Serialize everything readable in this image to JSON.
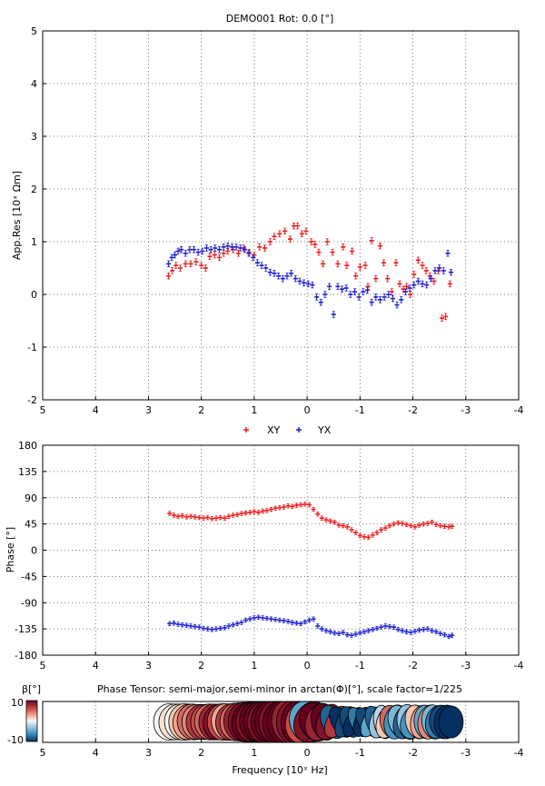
{
  "figure": {
    "title": "DEMO001 Rot: 0.0 [°]",
    "xlabel": "Frequency [10ˣ Hz]",
    "colors": {
      "xy": "#e8191b",
      "yx": "#1c1ccf",
      "grid": "#555555"
    }
  },
  "chart_data": [
    {
      "type": "scatter",
      "panel": "resistivity",
      "ylabel": "App.Res [10ˣ Ωm]",
      "xlim": [
        5,
        -4
      ],
      "ylim": [
        -2,
        5
      ],
      "xticks": [
        "5",
        "4",
        "3",
        "2",
        "1",
        "0",
        "-1",
        "-2",
        "-3",
        "-4"
      ],
      "yticks": [
        "-2",
        "-1",
        "0",
        "1",
        "2",
        "3",
        "4",
        "5"
      ],
      "grid": true,
      "legend_position": "below",
      "series": [
        {
          "name": "XY",
          "color": "#e8191b",
          "x": [
            2.62,
            2.55,
            2.48,
            2.4,
            2.3,
            2.2,
            2.1,
            2.0,
            1.92,
            1.84,
            1.75,
            1.66,
            1.58,
            1.5,
            1.4,
            1.3,
            1.2,
            1.1,
            1.0,
            0.9,
            0.8,
            0.7,
            0.62,
            0.52,
            0.42,
            0.32,
            0.25,
            0.18,
            0.1,
            0.02,
            -0.08,
            -0.15,
            -0.22,
            -0.3,
            -0.38,
            -0.48,
            -0.58,
            -0.68,
            -0.75,
            -0.85,
            -0.92,
            -1.0,
            -1.1,
            -1.15,
            -1.22,
            -1.3,
            -1.38,
            -1.45,
            -1.52,
            -1.6,
            -1.68,
            -1.75,
            -1.82,
            -1.88,
            -1.95,
            -2.02,
            -2.1,
            -2.18,
            -2.25,
            -2.32,
            -2.4,
            -2.48,
            -2.55,
            -2.62,
            -2.7
          ],
          "y": [
            0.35,
            0.45,
            0.55,
            0.5,
            0.58,
            0.58,
            0.62,
            0.55,
            0.5,
            0.72,
            0.75,
            0.7,
            0.78,
            0.82,
            0.85,
            0.78,
            0.88,
            0.8,
            0.75,
            0.9,
            0.88,
            1.0,
            1.1,
            1.15,
            1.2,
            1.05,
            1.3,
            1.3,
            1.15,
            1.2,
            1.0,
            0.95,
            0.8,
            0.58,
            1.0,
            0.8,
            0.58,
            0.9,
            0.55,
            0.82,
            0.35,
            0.52,
            0.55,
            0.15,
            1.02,
            0.3,
            0.92,
            0.6,
            0.3,
            0.05,
            0.6,
            0.2,
            0.1,
            0.15,
            0.0,
            0.38,
            0.65,
            0.55,
            0.45,
            0.35,
            0.25,
            0.45,
            -0.45,
            -0.42,
            0.2
          ],
          "yerr": 0.04
        },
        {
          "name": "YX",
          "color": "#1c1ccf",
          "x": [
            2.62,
            2.56,
            2.5,
            2.44,
            2.38,
            2.3,
            2.22,
            2.14,
            2.06,
            1.98,
            1.9,
            1.82,
            1.74,
            1.66,
            1.58,
            1.5,
            1.42,
            1.34,
            1.26,
            1.18,
            1.1,
            1.02,
            0.94,
            0.86,
            0.78,
            0.7,
            0.62,
            0.54,
            0.46,
            0.38,
            0.3,
            0.22,
            0.14,
            0.06,
            -0.02,
            -0.1,
            -0.18,
            -0.26,
            -0.34,
            -0.42,
            -0.5,
            -0.58,
            -0.66,
            -0.74,
            -0.82,
            -0.9,
            -0.98,
            -1.06,
            -1.14,
            -1.22,
            -1.3,
            -1.38,
            -1.46,
            -1.54,
            -1.62,
            -1.7,
            -1.78,
            -1.86,
            -1.94,
            -2.02,
            -2.1,
            -2.18,
            -2.26,
            -2.34,
            -2.42,
            -2.5,
            -2.58,
            -2.66,
            -2.72
          ],
          "y": [
            0.58,
            0.7,
            0.75,
            0.82,
            0.85,
            0.78,
            0.85,
            0.85,
            0.8,
            0.82,
            0.88,
            0.85,
            0.88,
            0.85,
            0.9,
            0.92,
            0.9,
            0.9,
            0.88,
            0.85,
            0.78,
            0.7,
            0.6,
            0.55,
            0.5,
            0.42,
            0.4,
            0.35,
            0.3,
            0.35,
            0.4,
            0.3,
            0.25,
            0.22,
            0.2,
            0.18,
            -0.05,
            -0.15,
            0.0,
            0.15,
            -0.38,
            0.15,
            0.1,
            0.12,
            0.0,
            0.05,
            -0.05,
            0.05,
            0.08,
            -0.15,
            -0.05,
            -0.1,
            -0.05,
            0.0,
            -0.08,
            -0.2,
            -0.1,
            0.05,
            0.12,
            0.18,
            0.25,
            0.2,
            0.18,
            0.3,
            0.45,
            0.5,
            0.45,
            0.78,
            0.42
          ],
          "yerr": 0.04
        }
      ]
    },
    {
      "type": "scatter",
      "panel": "phase",
      "ylabel": "Phase [°]",
      "xlim": [
        5,
        -4
      ],
      "ylim": [
        -180,
        180
      ],
      "xticks": [
        "5",
        "4",
        "3",
        "2",
        "1",
        "0",
        "-1",
        "-2",
        "-3",
        "-4"
      ],
      "yticks": [
        "-180",
        "-135",
        "-90",
        "-45",
        "0",
        "45",
        "90",
        "135",
        "180"
      ],
      "grid": true,
      "series": [
        {
          "name": "XY",
          "color": "#e8191b",
          "x": [
            2.6,
            2.52,
            2.44,
            2.36,
            2.28,
            2.2,
            2.12,
            2.04,
            1.96,
            1.88,
            1.8,
            1.72,
            1.64,
            1.56,
            1.48,
            1.4,
            1.32,
            1.24,
            1.16,
            1.08,
            1.0,
            0.92,
            0.84,
            0.76,
            0.68,
            0.6,
            0.52,
            0.44,
            0.36,
            0.28,
            0.2,
            0.12,
            0.04,
            -0.04,
            -0.12,
            -0.2,
            -0.28,
            -0.36,
            -0.44,
            -0.52,
            -0.6,
            -0.68,
            -0.76,
            -0.84,
            -0.92,
            -1.0,
            -1.08,
            -1.16,
            -1.24,
            -1.32,
            -1.4,
            -1.48,
            -1.56,
            -1.64,
            -1.72,
            -1.8,
            -1.88,
            -1.96,
            -2.04,
            -2.12,
            -2.2,
            -2.28,
            -2.36,
            -2.44,
            -2.52,
            -2.6,
            -2.68,
            -2.74
          ],
          "y": [
            63,
            60,
            58,
            59,
            57,
            58,
            57,
            56,
            55,
            56,
            54,
            55,
            56,
            55,
            58,
            60,
            61,
            63,
            64,
            65,
            66,
            65,
            67,
            68,
            70,
            72,
            73,
            74,
            76,
            75,
            77,
            78,
            79,
            78,
            70,
            62,
            55,
            52,
            50,
            48,
            43,
            42,
            40,
            35,
            30,
            25,
            23,
            22,
            26,
            30,
            35,
            38,
            42,
            45,
            47,
            46,
            44,
            42,
            40,
            43,
            45,
            46,
            48,
            44,
            42,
            41,
            40,
            41
          ],
          "yerr": 2
        },
        {
          "name": "YX",
          "color": "#1c1ccf",
          "x": [
            2.6,
            2.52,
            2.44,
            2.36,
            2.28,
            2.2,
            2.12,
            2.04,
            1.96,
            1.88,
            1.8,
            1.72,
            1.64,
            1.56,
            1.48,
            1.4,
            1.32,
            1.24,
            1.16,
            1.08,
            1.0,
            0.92,
            0.84,
            0.76,
            0.68,
            0.6,
            0.52,
            0.44,
            0.36,
            0.28,
            0.2,
            0.12,
            0.04,
            -0.04,
            -0.12,
            -0.2,
            -0.28,
            -0.36,
            -0.44,
            -0.52,
            -0.6,
            -0.68,
            -0.76,
            -0.84,
            -0.92,
            -1.0,
            -1.08,
            -1.16,
            -1.24,
            -1.32,
            -1.4,
            -1.48,
            -1.56,
            -1.64,
            -1.72,
            -1.8,
            -1.88,
            -1.96,
            -2.04,
            -2.12,
            -2.2,
            -2.28,
            -2.36,
            -2.44,
            -2.52,
            -2.6,
            -2.68,
            -2.74
          ],
          "y": [
            -126,
            -125,
            -127,
            -128,
            -129,
            -130,
            -131,
            -132,
            -134,
            -135,
            -136,
            -135,
            -134,
            -133,
            -130,
            -128,
            -126,
            -124,
            -120,
            -118,
            -116,
            -115,
            -116,
            -117,
            -118,
            -119,
            -120,
            -121,
            -122,
            -124,
            -125,
            -126,
            -123,
            -120,
            -118,
            -130,
            -135,
            -138,
            -140,
            -142,
            -143,
            -141,
            -145,
            -146,
            -144,
            -142,
            -140,
            -138,
            -136,
            -134,
            -132,
            -130,
            -131,
            -132,
            -136,
            -138,
            -140,
            -141,
            -139,
            -137,
            -136,
            -135,
            -138,
            -140,
            -143,
            -145,
            -148,
            -146
          ],
          "yerr": 2
        }
      ]
    },
    {
      "type": "scatter",
      "panel": "phase-tensor",
      "title": "Phase Tensor: semi-major,semi-minor in arctan(Φ)[°], scale factor=1/225",
      "colorbar_label": "β[°]",
      "colorbar_ticks": [
        "10",
        "-10"
      ],
      "xlim": [
        5,
        -4
      ],
      "xticks": [
        "5",
        "4",
        "3",
        "2",
        "1",
        "0",
        "-1",
        "-2",
        "-3",
        "-4"
      ],
      "ellipses": {
        "x": [
          2.6,
          2.5,
          2.4,
          2.32,
          2.24,
          2.16,
          2.08,
          2.0,
          1.92,
          1.84,
          1.76,
          1.68,
          1.6,
          1.52,
          1.44,
          1.36,
          1.28,
          1.2,
          1.12,
          1.04,
          0.96,
          0.88,
          0.8,
          0.72,
          0.64,
          0.56,
          0.48,
          0.4,
          0.32,
          0.24,
          0.16,
          0.08,
          0.0,
          -0.08,
          -0.16,
          -0.24,
          -0.32,
          -0.4,
          -0.48,
          -0.56,
          -0.64,
          -0.72,
          -0.8,
          -0.88,
          -0.96,
          -1.04,
          -1.12,
          -1.2,
          -1.28,
          -1.36,
          -1.44,
          -1.52,
          -1.6,
          -1.68,
          -1.76,
          -1.84,
          -1.92,
          -2.0,
          -2.08,
          -2.16,
          -2.24,
          -2.32,
          -2.4,
          -2.48,
          -2.56,
          -2.64,
          -2.72
        ],
        "beta": [
          0,
          1,
          0,
          2,
          3,
          5,
          4,
          7,
          6,
          5,
          8,
          9,
          6,
          3,
          7,
          5,
          8,
          9,
          10,
          9,
          10,
          10,
          9,
          10,
          10,
          9,
          10,
          10,
          8,
          9,
          10,
          6,
          -5,
          9,
          10,
          8,
          10,
          9,
          -8,
          7,
          -10,
          -9,
          -9,
          -10,
          -7,
          -10,
          -9,
          -5,
          -8,
          -3,
          -2,
          2,
          5,
          -6,
          -4,
          -8,
          -3,
          -6,
          2,
          3,
          -5,
          4,
          -4,
          -7,
          -9,
          -10,
          -10
        ],
        "phimax": [
          48,
          47,
          47,
          48,
          47,
          47,
          46,
          46,
          46,
          47,
          47,
          47,
          48,
          48,
          48,
          49,
          50,
          51,
          52,
          52,
          53,
          54,
          55,
          56,
          57,
          58,
          58,
          59,
          59,
          58,
          58,
          57,
          56,
          55,
          52,
          50,
          49,
          48,
          46,
          45,
          44,
          43,
          42,
          42,
          41,
          40,
          41,
          42,
          43,
          43,
          44,
          44,
          44,
          45,
          45,
          45,
          46,
          45,
          45,
          44,
          44,
          45,
          45,
          44,
          44,
          44,
          42
        ],
        "phimin": [
          42,
          42,
          41,
          41,
          41,
          41,
          40,
          40,
          39,
          40,
          40,
          39,
          40,
          40,
          40,
          40,
          41,
          41,
          42,
          43,
          44,
          45,
          46,
          47,
          48,
          49,
          50,
          49,
          48,
          47,
          46,
          45,
          45,
          44,
          41,
          37,
          33,
          30,
          28,
          26,
          24,
          22,
          22,
          21,
          20,
          20,
          21,
          21,
          22,
          24,
          25,
          28,
          30,
          31,
          30,
          28,
          30,
          31,
          30,
          28,
          30,
          31,
          32,
          33,
          34,
          33,
          32
        ],
        "azimuth": [
          0,
          5,
          -5,
          0,
          10,
          -10,
          0,
          5,
          0,
          -5,
          0,
          10,
          0,
          -10,
          5,
          0,
          -5,
          0,
          10,
          0,
          -10,
          0,
          5,
          0,
          -5,
          0,
          10,
          0,
          -10,
          0,
          5,
          15,
          -20,
          25,
          -25,
          20,
          -15,
          20,
          -25,
          30,
          -30,
          25,
          -20,
          30,
          -25,
          20,
          -30,
          25,
          -20,
          15,
          -10,
          20,
          -15,
          10,
          -20,
          15,
          -10,
          20,
          -15,
          10,
          -5,
          10,
          -10,
          15,
          -10,
          5,
          0
        ]
      }
    }
  ]
}
